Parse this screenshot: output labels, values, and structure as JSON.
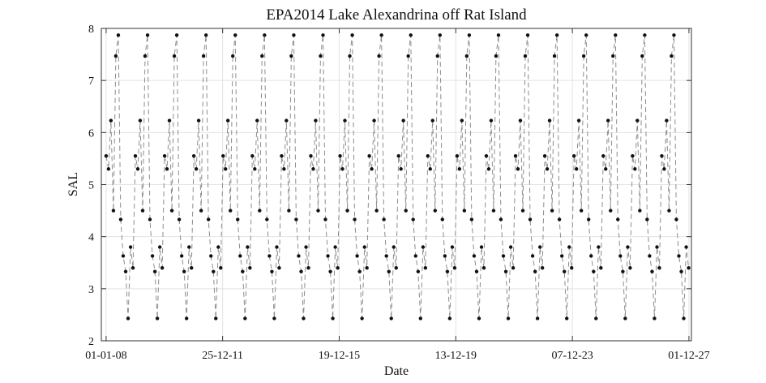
{
  "chart_data": {
    "type": "line",
    "title": "EPA2014 Lake Alexandrina off Rat Island",
    "xlabel": "Date",
    "ylabel": "SAL",
    "ylim": [
      2,
      8
    ],
    "yticks": [
      2,
      3,
      4,
      5,
      6,
      7,
      8
    ],
    "xlim": [
      "2007-11-02",
      "2028-01-01"
    ],
    "xticks": [
      {
        "date": "2008-01-01",
        "label": "01-01-08"
      },
      {
        "date": "2011-12-25",
        "label": "25-12-11"
      },
      {
        "date": "2015-12-19",
        "label": "19-12-15"
      },
      {
        "date": "2019-12-13",
        "label": "13-12-19"
      },
      {
        "date": "2023-12-07",
        "label": "07-12-23"
      },
      {
        "date": "2027-12-01",
        "label": "01-12-27"
      }
    ],
    "grid": true,
    "series": [
      {
        "color": "#8c8c8c",
        "marker_color": "#111111",
        "line_style": "dashed",
        "cycle_x_offsets_days": [
          0,
          30,
          60,
          91,
          121,
          152,
          182,
          213,
          244,
          274,
          305,
          335
        ],
        "cycle_y": [
          5.55,
          5.3,
          6.23,
          4.5,
          7.47,
          7.87,
          4.33,
          3.63,
          3.33,
          2.43,
          3.8,
          3.4
        ],
        "cycle_start_dates": [
          "2008-01-01",
          "2008-12-31",
          "2009-12-31",
          "2010-12-31",
          "2011-12-31",
          "2012-12-30",
          "2013-12-30",
          "2014-12-30",
          "2015-12-30",
          "2016-12-29",
          "2017-12-29",
          "2018-12-29",
          "2019-12-29",
          "2020-12-28",
          "2021-12-28",
          "2022-12-28",
          "2023-12-28",
          "2024-12-27",
          "2025-12-27",
          "2026-12-27"
        ]
      }
    ]
  }
}
